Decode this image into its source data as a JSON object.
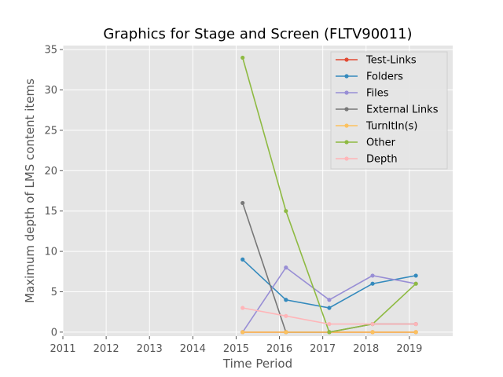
{
  "chart_data": {
    "type": "line",
    "title": "Graphics for Stage and Screen (FLTV90011)",
    "xlabel": "Time Period",
    "ylabel": "Maximum depth of LMS content items",
    "xlim": [
      2011,
      2020
    ],
    "ylim": [
      -0.5,
      35.5
    ],
    "xticks": [
      "2011",
      "2012",
      "2013",
      "2014",
      "2015",
      "2016",
      "2017",
      "2018",
      "2019"
    ],
    "yticks": [
      "0",
      "5",
      "10",
      "15",
      "20",
      "25",
      "30",
      "35"
    ],
    "grid": true,
    "legend_position": "top-right",
    "x": [
      2015.15,
      2016.15,
      2017.15,
      2018.15,
      2019.15
    ],
    "series": [
      {
        "name": "Test-Links",
        "color": "#E24A33",
        "values": [
          0,
          0,
          0,
          0,
          0
        ]
      },
      {
        "name": "Folders",
        "color": "#348ABD",
        "values": [
          9,
          4,
          3,
          6,
          7
        ]
      },
      {
        "name": "Files",
        "color": "#988ED5",
        "values": [
          0,
          8,
          4,
          7,
          6
        ]
      },
      {
        "name": "External Links",
        "color": "#777777",
        "values": [
          16,
          0,
          0,
          1,
          1
        ]
      },
      {
        "name": "TurnItIn(s)",
        "color": "#FBC15E",
        "values": [
          0,
          0,
          0,
          0,
          0
        ]
      },
      {
        "name": "Other",
        "color": "#8EBA42",
        "values": [
          34,
          15,
          0,
          1,
          6
        ]
      },
      {
        "name": "Depth",
        "color": "#FFB5B8",
        "values": [
          3,
          2,
          1,
          1,
          1
        ]
      }
    ]
  }
}
